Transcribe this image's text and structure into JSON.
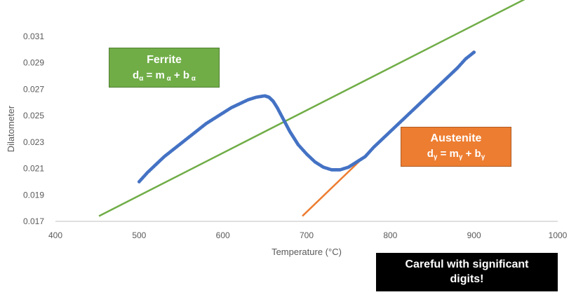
{
  "colors": {
    "data": "#4472c4",
    "ferrite": "#70ad47",
    "austenite": "#ed7d31",
    "axis": "#bfbfbf",
    "text": "#595959",
    "note_bg": "#000000"
  },
  "chart_data": {
    "type": "scatter",
    "title": "",
    "xlabel": "Temperature (°C)",
    "ylabel": "Dilatometer",
    "xlim": [
      400,
      1000
    ],
    "ylim": [
      0.017,
      0.031
    ],
    "x_ticks": [
      "400",
      "500",
      "600",
      "700",
      "800",
      "900",
      "1000"
    ],
    "y_ticks": [
      "0.017",
      "0.019",
      "0.021",
      "0.023",
      "0.025",
      "0.027",
      "0.029",
      "0.031"
    ],
    "grid": false,
    "series": [
      {
        "type": "scatter",
        "points": [
          [
            500,
            0.02
          ],
          [
            510,
            0.0207
          ],
          [
            520,
            0.0213
          ],
          [
            530,
            0.0219
          ],
          [
            540,
            0.0224
          ],
          [
            550,
            0.0229
          ],
          [
            560,
            0.0234
          ],
          [
            570,
            0.0239
          ],
          [
            580,
            0.0244
          ],
          [
            590,
            0.0248
          ],
          [
            600,
            0.0252
          ],
          [
            610,
            0.0256
          ],
          [
            620,
            0.0259
          ],
          [
            630,
            0.0262
          ],
          [
            640,
            0.0264
          ],
          [
            650,
            0.0265
          ],
          [
            655,
            0.0264
          ],
          [
            660,
            0.0261
          ],
          [
            665,
            0.0256
          ],
          [
            670,
            0.025
          ],
          [
            675,
            0.0244
          ],
          [
            680,
            0.0238
          ],
          [
            685,
            0.0233
          ],
          [
            690,
            0.0228
          ],
          [
            700,
            0.0221
          ],
          [
            710,
            0.0215
          ],
          [
            720,
            0.0211
          ],
          [
            730,
            0.0209
          ],
          [
            740,
            0.0209
          ],
          [
            750,
            0.0211
          ],
          [
            760,
            0.0215
          ],
          [
            770,
            0.0219
          ],
          [
            780,
            0.0226
          ],
          [
            790,
            0.0232
          ],
          [
            800,
            0.0238
          ],
          [
            810,
            0.0244
          ],
          [
            820,
            0.025
          ],
          [
            830,
            0.0256
          ],
          [
            840,
            0.0262
          ],
          [
            850,
            0.0268
          ],
          [
            860,
            0.0274
          ],
          [
            870,
            0.028
          ],
          [
            880,
            0.0286
          ],
          [
            890,
            0.0293
          ],
          [
            900,
            0.0298
          ]
        ]
      },
      {
        "type": "line",
        "points": [
          [
            452,
            0.0174
          ],
          [
            988,
            0.0347
          ]
        ]
      },
      {
        "type": "line",
        "points": [
          [
            695,
            0.0174
          ],
          [
            900,
            0.0299
          ]
        ]
      }
    ]
  },
  "annotations": {
    "ferrite": {
      "title": "Ferrite",
      "eq": {
        "d": "d",
        "d_sub": "α",
        "eq": " = m",
        "m_sub": " α",
        "plus": " + b",
        "b_sub": " α"
      }
    },
    "austenite": {
      "title": "Austenite",
      "eq": {
        "d": "d",
        "d_sub": "γ",
        "eq": " = m",
        "m_sub": "γ",
        "plus": " + b",
        "b_sub": "γ"
      }
    },
    "note": {
      "line1": "Careful with significant",
      "line2": "digits!"
    }
  }
}
